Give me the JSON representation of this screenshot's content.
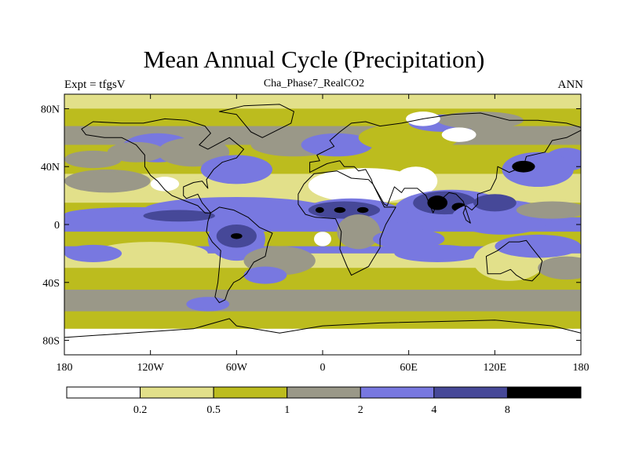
{
  "title": "Mean Annual Cycle (Precipitation)",
  "subtitle_left": "Expt = tfgsV",
  "subtitle_center": "Cha_Phase7_RealCO2",
  "subtitle_right": "ANN",
  "colors": {
    "white": "#ffffff",
    "pale_yellow": "#e2e08a",
    "olive": "#bcbc1e",
    "gray": "#9a9888",
    "light_blue": "#7878e0",
    "dark_blue": "#464898",
    "black": "#000000",
    "coast": "#000000"
  },
  "chart_data": {
    "type": "heatmap",
    "projection": "cylindrical-equidistant",
    "xlim": [
      -180,
      180
    ],
    "ylim": [
      -90,
      90
    ],
    "x_ticks": [
      {
        "value": -180,
        "label": "180"
      },
      {
        "value": -120,
        "label": "120W"
      },
      {
        "value": -60,
        "label": "60W"
      },
      {
        "value": 0,
        "label": "0"
      },
      {
        "value": 60,
        "label": "60E"
      },
      {
        "value": 120,
        "label": "120E"
      },
      {
        "value": 180,
        "label": "180"
      }
    ],
    "y_ticks": [
      {
        "value": 80,
        "label": "80N"
      },
      {
        "value": 40,
        "label": "40N"
      },
      {
        "value": 0,
        "label": "0"
      },
      {
        "value": -40,
        "label": "40S"
      },
      {
        "value": -80,
        "label": "80S"
      }
    ],
    "colorbar": {
      "levels": [
        "0.2",
        "0.5",
        "1",
        "2",
        "4",
        "8"
      ],
      "bins": [
        "white",
        "pale_yellow",
        "olive",
        "gray",
        "light_blue",
        "dark_blue",
        "black"
      ]
    },
    "zonal_bands": [
      {
        "lat": [
          80,
          90
        ],
        "bin": "pale_yellow"
      },
      {
        "lat": [
          68,
          80
        ],
        "bin": "olive"
      },
      {
        "lat": [
          55,
          68
        ],
        "bin": "gray"
      },
      {
        "lat": [
          35,
          55
        ],
        "bin": "olive"
      },
      {
        "lat": [
          15,
          35
        ],
        "bin": "pale_yellow"
      },
      {
        "lat": [
          5,
          15
        ],
        "bin": "olive"
      },
      {
        "lat": [
          -5,
          5
        ],
        "bin": "light_blue"
      },
      {
        "lat": [
          -15,
          -5
        ],
        "bin": "olive"
      },
      {
        "lat": [
          -20,
          -15
        ],
        "bin": "light_blue"
      },
      {
        "lat": [
          -30,
          -20
        ],
        "bin": "pale_yellow"
      },
      {
        "lat": [
          -45,
          -30
        ],
        "bin": "olive"
      },
      {
        "lat": [
          -60,
          -45
        ],
        "bin": "gray"
      },
      {
        "lat": [
          -72,
          -60
        ],
        "bin": "olive"
      },
      {
        "lat": [
          -90,
          -72
        ],
        "bin": "white"
      }
    ],
    "regions": [
      {
        "lon": -115,
        "lat": 53,
        "rlon": 25,
        "rlat": 10,
        "bin": "light_blue"
      },
      {
        "lon": -130,
        "lat": 50,
        "rlon": 20,
        "rlat": 7,
        "bin": "gray"
      },
      {
        "lon": -160,
        "lat": 45,
        "rlon": 20,
        "rlat": 6,
        "bin": "gray"
      },
      {
        "lon": -90,
        "lat": 50,
        "rlon": 25,
        "rlat": 10,
        "bin": "gray"
      },
      {
        "lon": -60,
        "lat": 38,
        "rlon": 25,
        "rlat": 10,
        "bin": "light_blue"
      },
      {
        "lon": -20,
        "lat": 55,
        "rlon": 30,
        "rlat": 8,
        "bin": "gray"
      },
      {
        "lon": 10,
        "lat": 55,
        "rlon": 25,
        "rlat": 8,
        "bin": "light_blue"
      },
      {
        "lon": 60,
        "lat": 60,
        "rlon": 35,
        "rlat": 10,
        "bin": "olive"
      },
      {
        "lon": 85,
        "lat": 70,
        "rlon": 25,
        "rlat": 6,
        "bin": "light_blue"
      },
      {
        "lon": 110,
        "lat": 72,
        "rlon": 30,
        "rlat": 6,
        "bin": "gray"
      },
      {
        "lon": 70,
        "lat": 73,
        "rlon": 12,
        "rlat": 5,
        "bin": "white"
      },
      {
        "lon": 95,
        "lat": 62,
        "rlon": 12,
        "rlat": 5,
        "bin": "white"
      },
      {
        "lon": 30,
        "lat": 27,
        "rlon": 40,
        "rlat": 12,
        "bin": "white"
      },
      {
        "lon": 65,
        "lat": 30,
        "rlon": 15,
        "rlat": 10,
        "bin": "white"
      },
      {
        "lon": -110,
        "lat": 28,
        "rlon": 10,
        "rlat": 5,
        "bin": "white"
      },
      {
        "lon": 170,
        "lat": 45,
        "rlon": 15,
        "rlat": 8,
        "bin": "light_blue"
      },
      {
        "lon": 150,
        "lat": 38,
        "rlon": 25,
        "rlat": 12,
        "bin": "light_blue"
      },
      {
        "lon": 140,
        "lat": 40,
        "rlon": 8,
        "rlat": 4,
        "bin": "black"
      },
      {
        "lon": -150,
        "lat": 30,
        "rlon": 30,
        "rlat": 8,
        "bin": "gray"
      },
      {
        "lon": -60,
        "lat": 10,
        "rlon": 65,
        "rlat": 9,
        "bin": "light_blue"
      },
      {
        "lon": -130,
        "lat": 7,
        "rlon": 50,
        "rlat": 5,
        "bin": "light_blue"
      },
      {
        "lon": -100,
        "lat": 6,
        "rlon": 25,
        "rlat": 4,
        "bin": "dark_blue"
      },
      {
        "lon": -155,
        "lat": 6,
        "rlon": 25,
        "rlat": 4,
        "bin": "light_blue"
      },
      {
        "lon": 20,
        "lat": 8,
        "rlon": 35,
        "rlat": 10,
        "bin": "light_blue"
      },
      {
        "lon": 15,
        "lat": 10,
        "rlon": 25,
        "rlat": 6,
        "bin": "dark_blue"
      },
      {
        "lon": -2,
        "lat": 10,
        "rlon": 3,
        "rlat": 2,
        "bin": "black"
      },
      {
        "lon": 12,
        "lat": 10,
        "rlon": 4,
        "rlat": 2,
        "bin": "black"
      },
      {
        "lon": 28,
        "lat": 10,
        "rlon": 4,
        "rlat": 2,
        "bin": "black"
      },
      {
        "lon": 90,
        "lat": 10,
        "rlon": 40,
        "rlat": 14,
        "bin": "light_blue"
      },
      {
        "lon": 85,
        "lat": 15,
        "rlon": 22,
        "rlat": 8,
        "bin": "dark_blue"
      },
      {
        "lon": 80,
        "lat": 15,
        "rlon": 7,
        "rlat": 5,
        "bin": "black"
      },
      {
        "lon": 95,
        "lat": 12,
        "rlon": 5,
        "rlat": 3,
        "bin": "black"
      },
      {
        "lon": 125,
        "lat": 5,
        "rlon": 35,
        "rlat": 12,
        "bin": "light_blue"
      },
      {
        "lon": 120,
        "lat": 15,
        "rlon": 15,
        "rlat": 6,
        "bin": "dark_blue"
      },
      {
        "lon": 160,
        "lat": 10,
        "rlon": 25,
        "rlat": 6,
        "bin": "gray"
      },
      {
        "lon": -60,
        "lat": -10,
        "rlon": 20,
        "rlat": 15,
        "bin": "light_blue"
      },
      {
        "lon": -60,
        "lat": -8,
        "rlon": 14,
        "rlat": 8,
        "bin": "dark_blue"
      },
      {
        "lon": -60,
        "lat": -8,
        "rlon": 4,
        "rlat": 2,
        "bin": "black"
      },
      {
        "lon": -30,
        "lat": -25,
        "rlon": 25,
        "rlat": 10,
        "bin": "gray"
      },
      {
        "lon": -40,
        "lat": -35,
        "rlon": 15,
        "rlat": 6,
        "bin": "light_blue"
      },
      {
        "lon": 0,
        "lat": -10,
        "rlon": 6,
        "rlat": 5,
        "bin": "white"
      },
      {
        "lon": 25,
        "lat": -5,
        "rlon": 15,
        "rlat": 12,
        "bin": "gray"
      },
      {
        "lon": 60,
        "lat": -10,
        "rlon": 25,
        "rlat": 7,
        "bin": "light_blue"
      },
      {
        "lon": 80,
        "lat": -20,
        "rlon": 30,
        "rlat": 6,
        "bin": "light_blue"
      },
      {
        "lon": 130,
        "lat": -25,
        "rlon": 20,
        "rlat": 10,
        "bin": "white"
      },
      {
        "lon": 130,
        "lat": -25,
        "rlon": 25,
        "rlat": 14,
        "bin": "pale_yellow"
      },
      {
        "lon": 150,
        "lat": -15,
        "rlon": 30,
        "rlat": 8,
        "bin": "light_blue"
      },
      {
        "lon": 170,
        "lat": -30,
        "rlon": 20,
        "rlat": 8,
        "bin": "gray"
      },
      {
        "lon": -120,
        "lat": -20,
        "rlon": 40,
        "rlat": 8,
        "bin": "pale_yellow"
      },
      {
        "lon": -160,
        "lat": -20,
        "rlon": 20,
        "rlat": 6,
        "bin": "light_blue"
      },
      {
        "lon": -80,
        "lat": -55,
        "rlon": 15,
        "rlat": 5,
        "bin": "light_blue"
      }
    ]
  },
  "land_shapes": [
    {
      "name": "north-america",
      "points": [
        [
          -168,
          66
        ],
        [
          -160,
          71
        ],
        [
          -140,
          70
        ],
        [
          -125,
          70
        ],
        [
          -110,
          73
        ],
        [
          -95,
          72
        ],
        [
          -82,
          68
        ],
        [
          -78,
          63
        ],
        [
          -86,
          55
        ],
        [
          -80,
          52
        ],
        [
          -65,
          60
        ],
        [
          -55,
          52
        ],
        [
          -60,
          46
        ],
        [
          -70,
          43
        ],
        [
          -76,
          38
        ],
        [
          -81,
          31
        ],
        [
          -80,
          25
        ],
        [
          -84,
          30
        ],
        [
          -90,
          29
        ],
        [
          -97,
          26
        ],
        [
          -97,
          20
        ],
        [
          -95,
          18
        ],
        [
          -87,
          21
        ],
        [
          -84,
          15
        ],
        [
          -78,
          8
        ],
        [
          -82,
          8
        ],
        [
          -87,
          13
        ],
        [
          -95,
          16
        ],
        [
          -105,
          20
        ],
        [
          -110,
          24
        ],
        [
          -115,
          30
        ],
        [
          -120,
          34
        ],
        [
          -124,
          40
        ],
        [
          -124,
          48
        ],
        [
          -130,
          55
        ],
        [
          -140,
          60
        ],
        [
          -152,
          60
        ],
        [
          -165,
          62
        ]
      ]
    },
    {
      "name": "greenland",
      "points": [
        [
          -72,
          78
        ],
        [
          -55,
          82
        ],
        [
          -30,
          83
        ],
        [
          -20,
          78
        ],
        [
          -22,
          70
        ],
        [
          -42,
          60
        ],
        [
          -50,
          64
        ],
        [
          -55,
          70
        ],
        [
          -60,
          76
        ]
      ]
    },
    {
      "name": "south-america",
      "points": [
        [
          -78,
          8
        ],
        [
          -72,
          12
        ],
        [
          -62,
          10
        ],
        [
          -52,
          5
        ],
        [
          -44,
          -2
        ],
        [
          -35,
          -6
        ],
        [
          -38,
          -13
        ],
        [
          -40,
          -22
        ],
        [
          -48,
          -26
        ],
        [
          -53,
          -34
        ],
        [
          -58,
          -38
        ],
        [
          -62,
          -40
        ],
        [
          -66,
          -46
        ],
        [
          -68,
          -52
        ],
        [
          -72,
          -54
        ],
        [
          -75,
          -50
        ],
        [
          -73,
          -40
        ],
        [
          -72,
          -30
        ],
        [
          -71,
          -18
        ],
        [
          -77,
          -12
        ],
        [
          -81,
          -5
        ],
        [
          -80,
          2
        ]
      ]
    },
    {
      "name": "africa",
      "points": [
        [
          -17,
          21
        ],
        [
          -13,
          28
        ],
        [
          -6,
          35
        ],
        [
          10,
          37
        ],
        [
          20,
          32
        ],
        [
          32,
          31
        ],
        [
          35,
          28
        ],
        [
          43,
          12
        ],
        [
          51,
          12
        ],
        [
          44,
          0
        ],
        [
          40,
          -10
        ],
        [
          40,
          -16
        ],
        [
          35,
          -24
        ],
        [
          32,
          -29
        ],
        [
          20,
          -35
        ],
        [
          17,
          -29
        ],
        [
          12,
          -17
        ],
        [
          13,
          -5
        ],
        [
          9,
          4
        ],
        [
          -5,
          5
        ],
        [
          -12,
          7
        ],
        [
          -17,
          14
        ]
      ]
    },
    {
      "name": "eurasia",
      "points": [
        [
          -9,
          36
        ],
        [
          -9,
          43
        ],
        [
          -2,
          44
        ],
        [
          -4,
          48
        ],
        [
          2,
          51
        ],
        [
          8,
          54
        ],
        [
          5,
          58
        ],
        [
          12,
          64
        ],
        [
          20,
          70
        ],
        [
          30,
          71
        ],
        [
          40,
          68
        ],
        [
          55,
          70
        ],
        [
          70,
          73
        ],
        [
          90,
          76
        ],
        [
          110,
          77
        ],
        [
          130,
          72
        ],
        [
          150,
          72
        ],
        [
          170,
          70
        ],
        [
          180,
          67
        ],
        [
          180,
          65
        ],
        [
          170,
          60
        ],
        [
          160,
          58
        ],
        [
          155,
          50
        ],
        [
          142,
          47
        ],
        [
          140,
          40
        ],
        [
          130,
          36
        ],
        [
          122,
          40
        ],
        [
          121,
          32
        ],
        [
          117,
          24
        ],
        [
          108,
          21
        ],
        [
          108,
          14
        ],
        [
          104,
          10
        ],
        [
          100,
          13
        ],
        [
          98,
          8
        ],
        [
          100,
          3
        ],
        [
          103,
          1
        ],
        [
          98,
          16
        ],
        [
          93,
          21
        ],
        [
          88,
          22
        ],
        [
          80,
          15
        ],
        [
          77,
          8
        ],
        [
          72,
          20
        ],
        [
          66,
          25
        ],
        [
          57,
          25
        ],
        [
          55,
          22
        ],
        [
          50,
          26
        ],
        [
          45,
          13
        ],
        [
          43,
          14
        ],
        [
          35,
          28
        ],
        [
          34,
          31
        ],
        [
          30,
          38
        ],
        [
          25,
          37
        ],
        [
          22,
          40
        ],
        [
          15,
          40
        ],
        [
          12,
          44
        ],
        [
          7,
          43
        ],
        [
          3,
          42
        ]
      ]
    },
    {
      "name": "australia",
      "points": [
        [
          114,
          -22
        ],
        [
          122,
          -18
        ],
        [
          130,
          -12
        ],
        [
          137,
          -12
        ],
        [
          142,
          -11
        ],
        [
          145,
          -15
        ],
        [
          153,
          -25
        ],
        [
          151,
          -34
        ],
        [
          146,
          -39
        ],
        [
          140,
          -38
        ],
        [
          135,
          -35
        ],
        [
          131,
          -31
        ],
        [
          124,
          -34
        ],
        [
          115,
          -34
        ]
      ]
    },
    {
      "name": "antarctica-coast",
      "points": [
        [
          -180,
          -78
        ],
        [
          -150,
          -76
        ],
        [
          -120,
          -74
        ],
        [
          -90,
          -72
        ],
        [
          -65,
          -65
        ],
        [
          -60,
          -70
        ],
        [
          -30,
          -75
        ],
        [
          0,
          -70
        ],
        [
          40,
          -68
        ],
        [
          80,
          -67
        ],
        [
          120,
          -66
        ],
        [
          160,
          -70
        ],
        [
          180,
          -75
        ]
      ]
    }
  ]
}
